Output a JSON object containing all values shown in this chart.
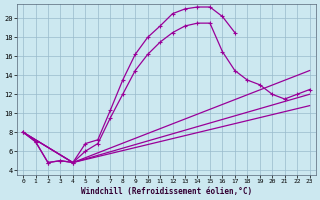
{
  "xlabel": "Windchill (Refroidissement éolien,°C)",
  "xlim": [
    -0.5,
    23.5
  ],
  "ylim": [
    3.5,
    21.5
  ],
  "bg_color": "#cce8f0",
  "line_color": "#990099",
  "grid_color": "#99bbcc",
  "xticks": [
    0,
    1,
    2,
    3,
    4,
    5,
    6,
    7,
    8,
    9,
    10,
    11,
    12,
    13,
    14,
    15,
    16,
    17,
    18,
    19,
    20,
    21,
    22,
    23
  ],
  "yticks": [
    4,
    6,
    8,
    10,
    12,
    14,
    16,
    18,
    20
  ],
  "curve1_x": [
    0,
    1,
    2,
    3,
    4,
    5,
    6,
    7,
    8,
    9,
    10,
    11,
    12,
    13,
    14,
    15,
    16,
    17
  ],
  "curve1_y": [
    8.0,
    7.0,
    4.8,
    5.0,
    4.8,
    6.8,
    7.2,
    10.3,
    13.5,
    16.2,
    18.0,
    19.2,
    20.5,
    21.0,
    21.2,
    21.2,
    20.2,
    18.5
  ],
  "curve2_x": [
    0,
    1,
    2,
    3,
    4,
    5,
    6,
    7,
    8,
    9,
    10,
    11,
    12,
    13,
    14,
    15,
    16,
    17,
    18,
    19,
    20,
    21,
    22,
    23
  ],
  "curve2_y": [
    8.0,
    7.0,
    4.8,
    5.0,
    4.8,
    6.0,
    6.8,
    9.5,
    12.0,
    14.5,
    16.2,
    17.5,
    18.5,
    19.2,
    19.5,
    19.5,
    16.5,
    14.5,
    13.5,
    13.0,
    12.0,
    11.5,
    12.0,
    12.5
  ],
  "curve3_x": [
    0,
    4,
    23
  ],
  "curve3_y": [
    8.0,
    4.8,
    14.5
  ],
  "curve4_x": [
    0,
    4,
    23
  ],
  "curve4_y": [
    8.0,
    4.8,
    12.0
  ],
  "curve5_x": [
    0,
    4,
    23
  ],
  "curve5_y": [
    8.0,
    4.8,
    10.8
  ]
}
